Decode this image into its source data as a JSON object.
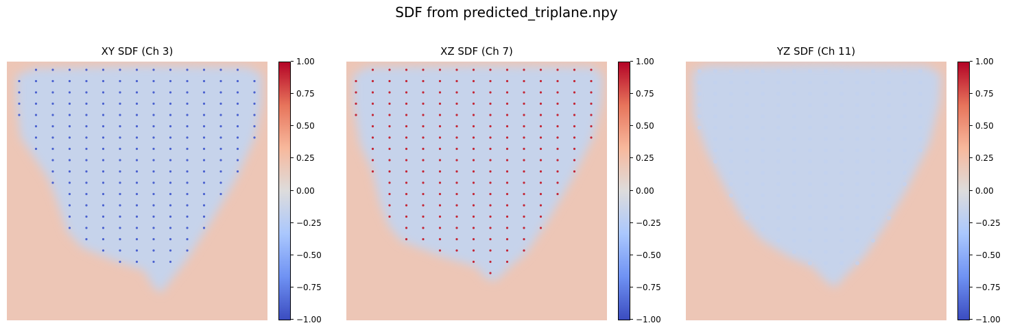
{
  "title": "SDF from predicted_triplane.npy",
  "colors": {
    "outside": "#efcbb6",
    "inside": "#cdd9ec",
    "neg_point": "#3c4fcf",
    "pos_point": "#b40426",
    "neutral_point": "#c2d2ef",
    "cmap_stops": [
      "#3b4cc0",
      "#6f92f3",
      "#aac7fd",
      "#dddcdc",
      "#f7b89c",
      "#e7745b",
      "#b40426"
    ]
  },
  "chart_data": [
    {
      "type": "heatmap",
      "title": "XY SDF (Ch 3)",
      "colormap": "coolwarm",
      "vmin": -1.0,
      "vmax": 1.0,
      "colorbar_ticks": [
        "1.00",
        "0.75",
        "0.50",
        "0.25",
        "0.00",
        "−0.25",
        "−0.50",
        "−0.75",
        "−1.00"
      ],
      "outside_value": 0.2,
      "inside_value": -0.15,
      "grid_point_value": -0.9,
      "point_pattern": "rows"
    },
    {
      "type": "heatmap",
      "title": "XZ SDF (Ch 7)",
      "colormap": "coolwarm",
      "vmin": -1.0,
      "vmax": 1.0,
      "colorbar_ticks": [
        "1.00",
        "0.75",
        "0.50",
        "0.25",
        "0.00",
        "−0.25",
        "−0.50",
        "−0.75",
        "−1.00"
      ],
      "outside_value": 0.2,
      "inside_value": -0.15,
      "grid_point_value": 0.9,
      "point_pattern": "rows"
    },
    {
      "type": "heatmap",
      "title": "YZ SDF (Ch 11)",
      "colormap": "coolwarm",
      "vmin": -1.0,
      "vmax": 1.0,
      "colorbar_ticks": [
        "1.00",
        "0.75",
        "0.50",
        "0.25",
        "0.00",
        "−0.25",
        "−0.50",
        "−0.75",
        "−1.00"
      ],
      "outside_value": 0.2,
      "inside_value": -0.15,
      "grid_point_value": -0.2,
      "point_pattern": "faint"
    }
  ]
}
